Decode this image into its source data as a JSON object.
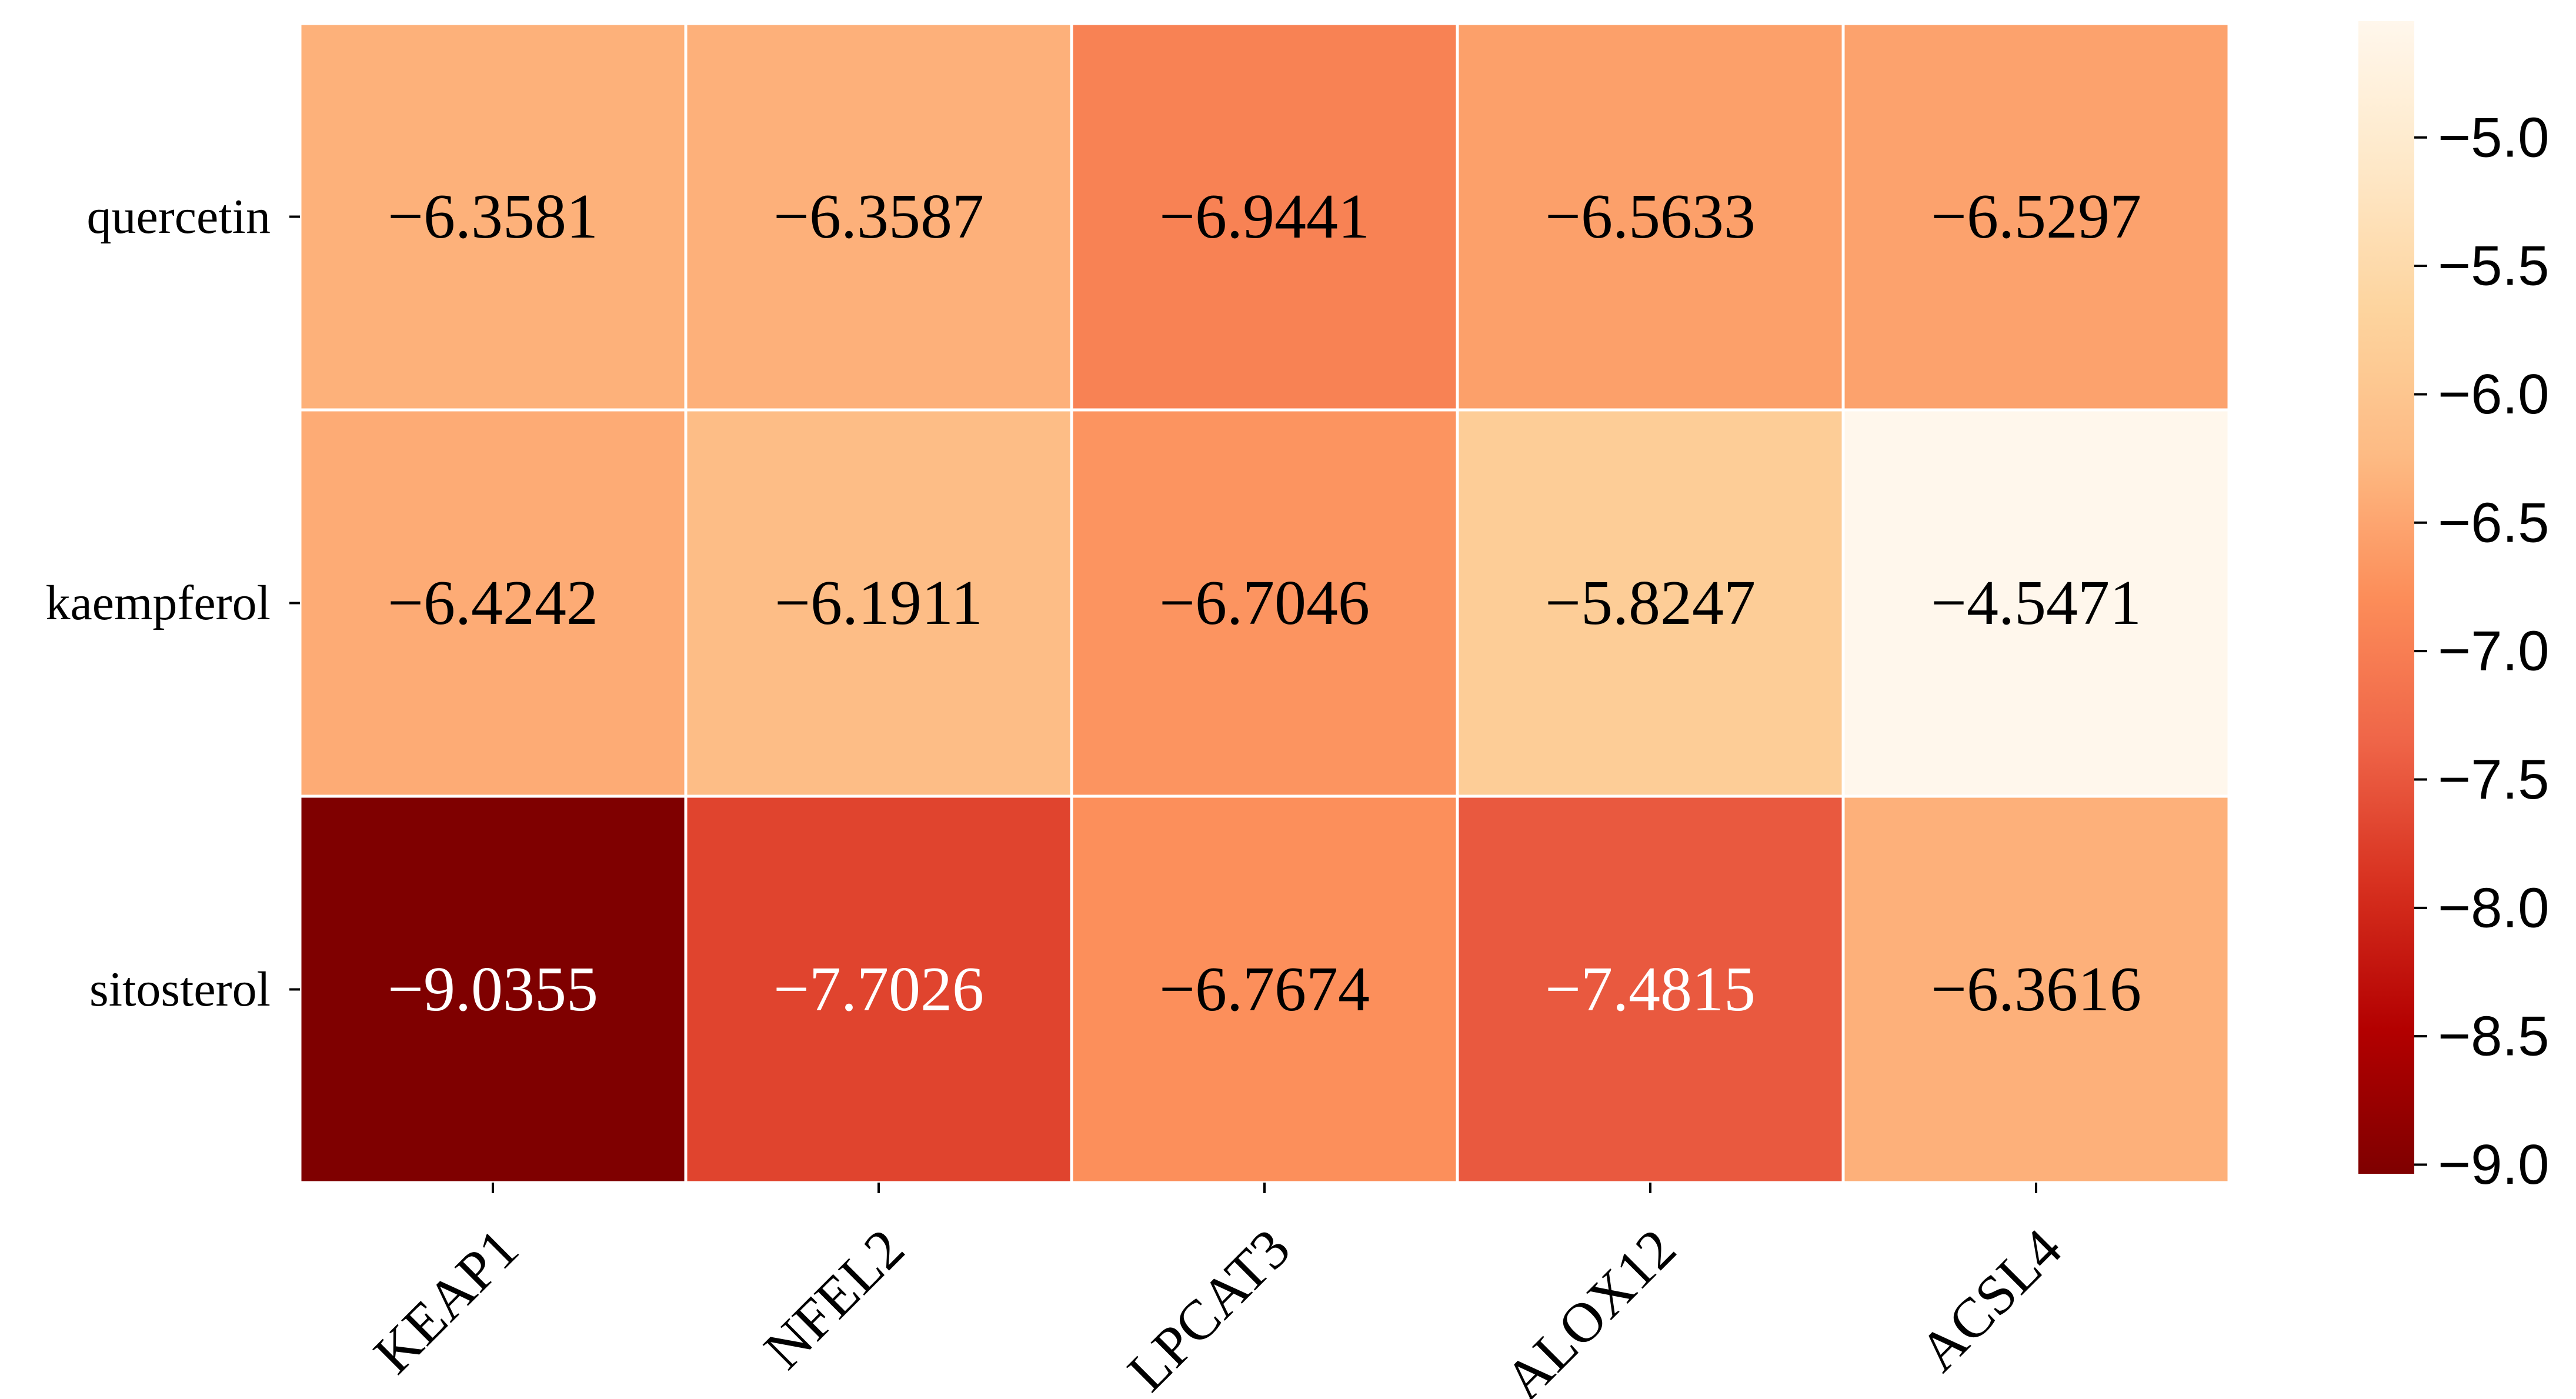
{
  "chart_data": {
    "type": "heatmap",
    "title": "",
    "xlabel": "",
    "ylabel": "",
    "rows": [
      "quercetin",
      "kaempferol",
      "sitosterol"
    ],
    "columns": [
      "KEAP1",
      "NFEL2",
      "LPCAT3",
      "ALOX12",
      "ACSL4"
    ],
    "values": [
      [
        -6.3581,
        -6.3587,
        -6.9441,
        -6.5633,
        -6.5297
      ],
      [
        -6.4242,
        -6.1911,
        -6.7046,
        -5.8247,
        -4.5471
      ],
      [
        -9.0355,
        -7.7026,
        -6.7674,
        -7.4815,
        -6.3616
      ]
    ],
    "value_labels": [
      [
        "−6.3581",
        "−6.3587",
        "−6.9441",
        "−6.5633",
        "−6.5297"
      ],
      [
        "−6.4242",
        "−6.1911",
        "−6.7046",
        "−5.8247",
        "−4.5471"
      ],
      [
        "−9.0355",
        "−7.7026",
        "−6.7674",
        "−7.4815",
        "−6.3616"
      ]
    ],
    "colorbar": {
      "colormap": "OrRd_r",
      "vmin": -9.0355,
      "vmax": -4.5471,
      "ticks": [
        -9.0,
        -8.5,
        -8.0,
        -7.5,
        -7.0,
        -6.5,
        -6.0,
        -5.5,
        -5.0
      ],
      "tick_labels": [
        "−9.0",
        "−8.5",
        "−8.0",
        "−7.5",
        "−7.0",
        "−6.5",
        "−6.0",
        "−5.5",
        "−5.0"
      ]
    },
    "legend": "colorbar-right",
    "grid": false,
    "cell_border_color": "#ffffff",
    "annotation_text_colors": {
      "dark_cells": "#ffffff",
      "light_cells": "#000000"
    }
  }
}
